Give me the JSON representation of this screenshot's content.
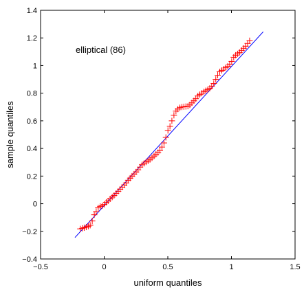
{
  "chart_data": {
    "type": "scatter",
    "title": "",
    "xlabel": "uniform quantiles",
    "ylabel": "sample quantiles",
    "annotation": "elliptical (86)",
    "xlim": [
      -0.5,
      1.5
    ],
    "ylim": [
      -0.4,
      1.4
    ],
    "xticks": [
      -0.5,
      0,
      0.5,
      1,
      1.5
    ],
    "yticks": [
      -0.4,
      -0.2,
      0,
      0.2,
      0.4,
      0.6,
      0.8,
      1,
      1.2,
      1.4
    ],
    "xtick_labels": [
      "−0.5",
      "0",
      "0.5",
      "1",
      "1.5"
    ],
    "ytick_labels": [
      "−0.4",
      "−0.2",
      "0",
      "0.2",
      "0.4",
      "0.6",
      "0.8",
      "1",
      "1.2",
      "1.4"
    ],
    "grid": false,
    "marker": "+",
    "colors": {
      "points": "#ff0000",
      "reference_line": "#0000ff",
      "axes": "#000000"
    },
    "reference_line": {
      "x": [
        -0.23,
        1.25
      ],
      "y": [
        -0.245,
        1.245
      ]
    },
    "points": {
      "x": [
        -0.188,
        -0.172,
        -0.157,
        -0.141,
        -0.125,
        -0.11,
        -0.094,
        -0.078,
        -0.063,
        -0.047,
        -0.031,
        -0.016,
        0.0,
        0.016,
        0.031,
        0.047,
        0.063,
        0.078,
        0.094,
        0.11,
        0.125,
        0.141,
        0.157,
        0.172,
        0.188,
        0.204,
        0.219,
        0.235,
        0.251,
        0.266,
        0.282,
        0.298,
        0.313,
        0.329,
        0.345,
        0.36,
        0.376,
        0.392,
        0.407,
        0.423,
        0.438,
        0.454,
        0.47,
        0.485,
        0.501,
        0.517,
        0.532,
        0.548,
        0.564,
        0.579,
        0.595,
        0.611,
        0.626,
        0.642,
        0.658,
        0.673,
        0.689,
        0.705,
        0.72,
        0.736,
        0.751,
        0.767,
        0.783,
        0.798,
        0.814,
        0.83,
        0.845,
        0.861,
        0.877,
        0.892,
        0.908,
        0.924,
        0.939,
        0.955,
        0.971,
        0.986,
        1.002,
        1.018,
        1.033,
        1.049,
        1.064,
        1.08,
        1.096,
        1.111,
        1.127,
        1.143
      ],
      "y": [
        -0.182,
        -0.178,
        -0.174,
        -0.169,
        -0.163,
        -0.156,
        -0.125,
        -0.08,
        -0.057,
        -0.03,
        -0.02,
        -0.015,
        -0.005,
        0.01,
        0.02,
        0.035,
        0.048,
        0.06,
        0.075,
        0.09,
        0.105,
        0.12,
        0.135,
        0.15,
        0.17,
        0.185,
        0.2,
        0.215,
        0.23,
        0.245,
        0.265,
        0.282,
        0.292,
        0.302,
        0.31,
        0.32,
        0.332,
        0.345,
        0.358,
        0.37,
        0.385,
        0.41,
        0.44,
        0.48,
        0.53,
        0.56,
        0.6,
        0.64,
        0.67,
        0.685,
        0.695,
        0.7,
        0.702,
        0.704,
        0.706,
        0.715,
        0.73,
        0.745,
        0.76,
        0.78,
        0.79,
        0.8,
        0.81,
        0.818,
        0.826,
        0.836,
        0.85,
        0.87,
        0.9,
        0.93,
        0.955,
        0.965,
        0.975,
        0.985,
        0.995,
        1.01,
        1.03,
        1.06,
        1.075,
        1.085,
        1.095,
        1.11,
        1.125,
        1.14,
        1.16,
        1.18
      ]
    }
  }
}
